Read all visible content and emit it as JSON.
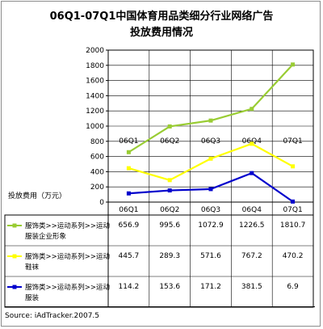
{
  "title_line1": "06Q1-07Q1中国体育用品类细分行业网络广告",
  "title_line2": "投放费用情况",
  "source": "Source: iAdTracker.2007.5",
  "chart_data": {
    "type": "line",
    "ylabel": "投放费用（万元）",
    "ylim": [
      0,
      2000
    ],
    "yticks": [
      0,
      200,
      400,
      600,
      800,
      1000,
      1200,
      1400,
      1600,
      1800,
      2000
    ],
    "categories": [
      "06Q1",
      "06Q2",
      "06Q3",
      "06Q4",
      "07Q1"
    ],
    "grid": true,
    "legend": "table-below",
    "series": [
      {
        "name": "服饰类>>运动系列>>运动服装企业形象",
        "label_lines": [
          "服饰类>>运动系列>>运动",
          "服装企业形象"
        ],
        "color": "#99cc33",
        "values": [
          656.9,
          995.6,
          1072.9,
          1226.5,
          1810.7
        ],
        "display": [
          "656.9",
          "995.6",
          "1072.9",
          "1226.5",
          "1810.7"
        ]
      },
      {
        "name": "服饰类>>运动系列>>运动鞋袜",
        "label_lines": [
          "服饰类>>运动系列>>运动",
          "鞋袜"
        ],
        "color": "#ffff00",
        "values": [
          445.7,
          289.3,
          571.6,
          767.2,
          470.2
        ],
        "display": [
          "445.7",
          "289.3",
          "571.6",
          "767.2",
          "470.2"
        ]
      },
      {
        "name": "服饰类>>运动系列>>运动服装",
        "label_lines": [
          "服饰类>>运动系列>>运动",
          "服装"
        ],
        "color": "#0000cc",
        "values": [
          114.2,
          153.6,
          171.2,
          381.5,
          6.9
        ],
        "display": [
          "114.2",
          "153.6",
          "171.2",
          "381.5",
          "6.9"
        ]
      }
    ]
  }
}
